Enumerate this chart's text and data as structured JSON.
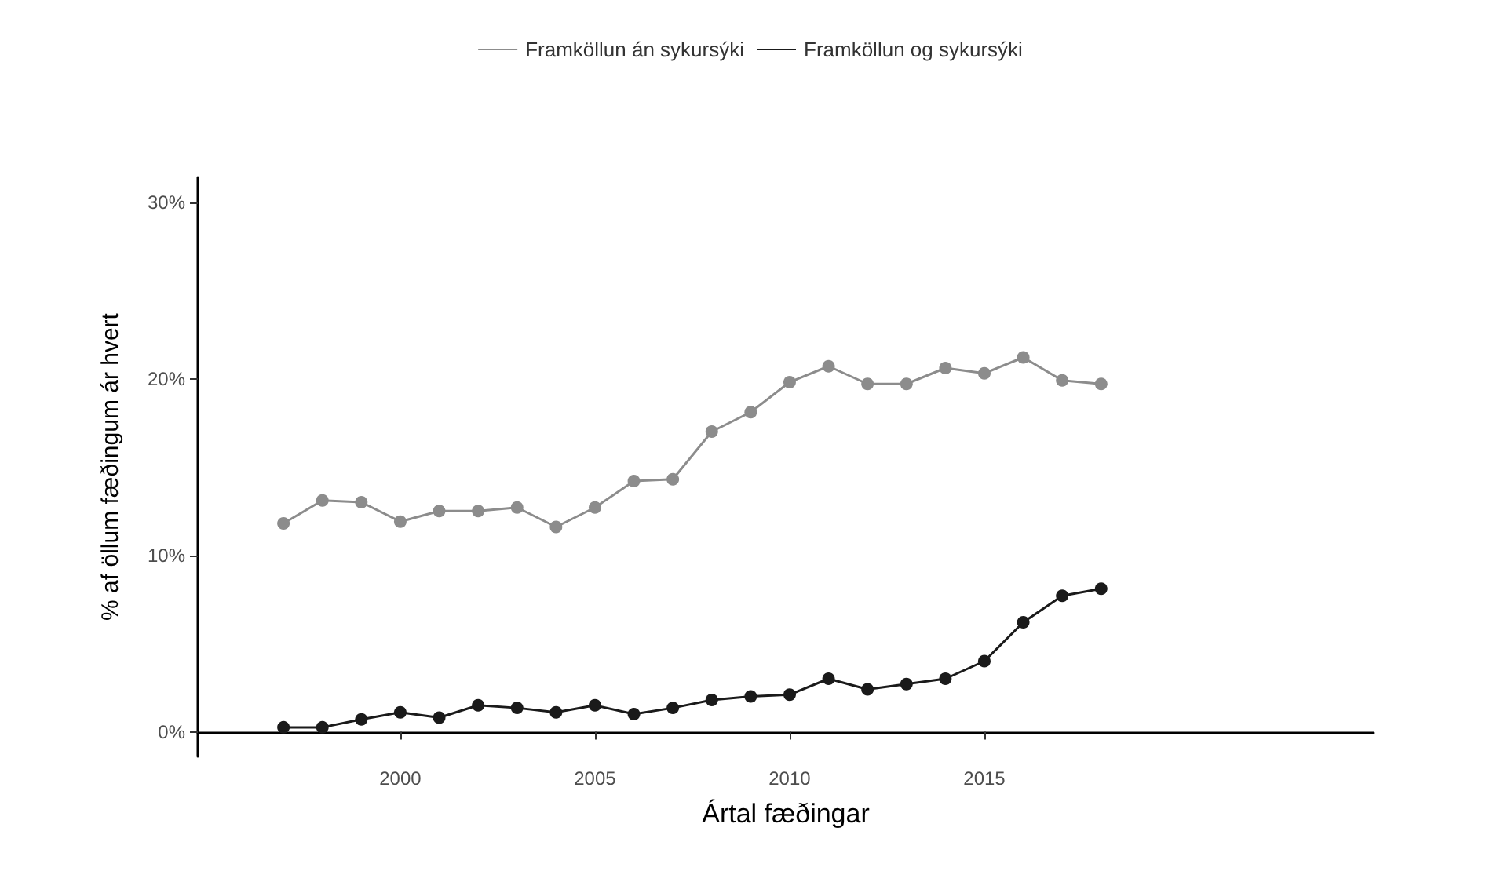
{
  "chart_data": {
    "type": "line",
    "xlabel": "Ártal fæðingar",
    "ylabel": "% af öllum fæðingum ár hvert",
    "x": [
      1997,
      1998,
      1999,
      2000,
      2001,
      2002,
      2003,
      2004,
      2005,
      2006,
      2007,
      2008,
      2009,
      2010,
      2011,
      2012,
      2013,
      2014,
      2015,
      2016,
      2017,
      2018
    ],
    "series": [
      {
        "name": "Framköllun án sykursýki",
        "color": "#8c8c8c",
        "values": [
          11.8,
          13.1,
          13.0,
          11.9,
          12.5,
          12.5,
          12.7,
          11.6,
          12.7,
          14.2,
          14.3,
          17.0,
          18.1,
          19.8,
          20.7,
          19.7,
          19.7,
          20.6,
          20.3,
          21.2,
          19.9,
          19.7
        ]
      },
      {
        "name": "Framköllun og sykursýki",
        "color": "#1a1a1a",
        "values": [
          0.25,
          0.25,
          0.7,
          1.1,
          0.8,
          1.5,
          1.35,
          1.1,
          1.5,
          1.0,
          1.35,
          1.8,
          2.0,
          2.1,
          3.0,
          2.4,
          2.7,
          3.0,
          4.0,
          6.2,
          7.7,
          8.1
        ]
      }
    ],
    "xlim": [
      1994.8,
      2025
    ],
    "xticks": [
      2000,
      2005,
      2010,
      2015
    ],
    "ylim": [
      -1.4,
      31.4
    ],
    "yticks": [
      {
        "value": 0,
        "label": "0%"
      },
      {
        "value": 10,
        "label": "10%"
      },
      {
        "value": 20,
        "label": "20%"
      },
      {
        "value": 30,
        "label": "30%"
      }
    ],
    "legend": "top",
    "marker": "circle",
    "line_style": "solid",
    "grid": false
  }
}
